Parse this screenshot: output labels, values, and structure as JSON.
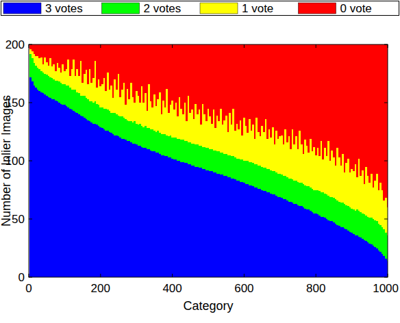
{
  "chart_data": {
    "type": "bar",
    "stacked": true,
    "legend": "top",
    "xlabel": "Category",
    "ylabel": "Number of Inlier Images",
    "xlim": [
      0,
      1000
    ],
    "ylim": [
      0,
      200
    ],
    "xticks": [
      0,
      200,
      400,
      600,
      800,
      1000
    ],
    "yticks": [
      0,
      50,
      100,
      150,
      200
    ],
    "x": [
      5,
      10,
      15,
      20,
      25,
      30,
      35,
      40,
      45,
      50,
      55,
      60,
      65,
      70,
      75,
      80,
      85,
      90,
      95,
      100,
      105,
      110,
      115,
      120,
      125,
      130,
      135,
      140,
      145,
      150,
      155,
      160,
      165,
      170,
      175,
      180,
      185,
      190,
      195,
      200,
      205,
      210,
      215,
      220,
      225,
      230,
      235,
      240,
      245,
      250,
      255,
      260,
      265,
      270,
      275,
      280,
      285,
      290,
      295,
      300,
      305,
      310,
      315,
      320,
      325,
      330,
      335,
      340,
      345,
      350,
      355,
      360,
      365,
      370,
      375,
      380,
      385,
      390,
      395,
      400,
      405,
      410,
      415,
      420,
      425,
      430,
      435,
      440,
      445,
      450,
      455,
      460,
      465,
      470,
      475,
      480,
      485,
      490,
      495,
      500,
      505,
      510,
      515,
      520,
      525,
      530,
      535,
      540,
      545,
      550,
      555,
      560,
      565,
      570,
      575,
      580,
      585,
      590,
      595,
      600,
      605,
      610,
      615,
      620,
      625,
      630,
      635,
      640,
      645,
      650,
      655,
      660,
      665,
      670,
      675,
      680,
      685,
      690,
      695,
      700,
      705,
      710,
      715,
      720,
      725,
      730,
      735,
      740,
      745,
      750,
      755,
      760,
      765,
      770,
      775,
      780,
      785,
      790,
      795,
      800,
      805,
      810,
      815,
      820,
      825,
      830,
      835,
      840,
      845,
      850,
      855,
      860,
      865,
      870,
      875,
      880,
      885,
      890,
      895,
      900,
      905,
      910,
      915,
      920,
      925,
      930,
      935,
      940,
      945,
      950,
      955,
      960,
      965,
      970,
      975,
      980,
      985,
      990,
      995,
      1000
    ],
    "series": [
      {
        "name": "3 votes",
        "color": "#0000ff",
        "values": [
          172,
          168,
          165,
          163,
          161,
          160,
          159,
          158,
          157,
          156,
          155,
          154,
          153,
          153,
          152,
          151,
          150,
          149,
          148,
          148,
          147,
          146,
          145,
          144,
          143,
          142,
          141,
          140,
          139,
          138,
          137,
          136,
          135,
          134,
          133,
          132,
          132,
          131,
          130,
          129,
          128,
          127,
          126,
          126,
          125,
          124,
          123,
          122,
          122,
          121,
          120,
          119,
          119,
          118,
          117,
          117,
          116,
          115,
          115,
          114,
          113,
          113,
          112,
          111,
          111,
          110,
          110,
          109,
          108,
          108,
          107,
          107,
          106,
          105,
          105,
          104,
          104,
          103,
          103,
          102,
          101,
          101,
          100,
          100,
          99,
          99,
          98,
          98,
          97,
          97,
          96,
          96,
          95,
          95,
          94,
          94,
          93,
          93,
          92,
          92,
          91,
          91,
          90,
          90,
          89,
          89,
          88,
          88,
          87,
          87,
          86,
          86,
          85,
          85,
          84,
          83,
          83,
          82,
          82,
          81,
          80,
          80,
          79,
          79,
          78,
          77,
          77,
          76,
          76,
          75,
          74,
          74,
          73,
          73,
          72,
          71,
          71,
          70,
          69,
          69,
          68,
          67,
          67,
          66,
          65,
          65,
          64,
          63,
          63,
          62,
          61,
          61,
          60,
          59,
          58,
          58,
          57,
          56,
          55,
          55,
          54,
          53,
          52,
          52,
          51,
          50,
          49,
          48,
          48,
          47,
          46,
          45,
          44,
          43,
          43,
          42,
          41,
          40,
          39,
          38,
          37,
          36,
          36,
          35,
          34,
          33,
          32,
          31,
          30,
          29,
          28,
          27,
          26,
          25,
          23,
          22,
          20,
          18,
          16,
          14
        ]
      },
      {
        "name": "2 votes",
        "color": "#00ff00",
        "values": [
          20,
          20,
          19,
          19,
          19,
          19,
          18,
          18,
          18,
          18,
          18,
          18,
          18,
          17,
          17,
          18,
          18,
          18,
          18,
          18,
          18,
          19,
          18,
          17,
          18,
          19,
          18,
          18,
          17,
          18,
          19,
          18,
          18,
          17,
          18,
          18,
          19,
          18,
          18,
          17,
          18,
          18,
          19,
          18,
          18,
          17,
          18,
          19,
          18,
          18,
          18,
          19,
          18,
          18,
          18,
          17,
          18,
          18,
          19,
          18,
          18,
          19,
          18,
          18,
          19,
          18,
          18,
          18,
          19,
          18,
          18,
          19,
          18,
          18,
          18,
          19,
          18,
          18,
          19,
          18,
          19,
          19,
          19,
          19,
          19,
          19,
          19,
          19,
          19,
          19,
          19,
          19,
          19,
          19,
          19,
          19,
          19,
          19,
          19,
          19,
          19,
          19,
          19,
          19,
          19,
          19,
          19,
          19,
          19,
          19,
          19,
          19,
          19,
          19,
          19,
          19,
          19,
          19,
          19,
          19,
          20,
          20,
          20,
          20,
          20,
          20,
          20,
          20,
          20,
          20,
          20,
          20,
          20,
          20,
          20,
          20,
          20,
          20,
          20,
          20,
          20,
          20,
          20,
          20,
          20,
          20,
          20,
          20,
          20,
          20,
          20,
          20,
          20,
          20,
          20,
          20,
          20,
          20,
          20,
          20,
          21,
          21,
          21,
          21,
          21,
          21,
          21,
          21,
          21,
          21,
          21,
          21,
          21,
          21,
          21,
          21,
          21,
          21,
          21,
          21,
          21,
          21,
          22,
          22,
          22,
          22,
          22,
          22,
          22,
          22,
          23,
          23,
          23,
          23,
          23,
          23,
          23,
          23,
          22,
          22
        ]
      },
      {
        "name": "1 vote",
        "color": "#ffff00",
        "values": [
          4,
          6,
          8,
          8,
          10,
          9,
          12,
          7,
          14,
          11,
          9,
          16,
          10,
          13,
          8,
          15,
          12,
          9,
          17,
          11,
          14,
          22,
          10,
          18,
          26,
          12,
          20,
          15,
          30,
          11,
          19,
          24,
          13,
          28,
          16,
          21,
          35,
          14,
          22,
          18,
          20,
          26,
          15,
          32,
          18,
          24,
          13,
          29,
          21,
          36,
          17,
          23,
          30,
          12,
          27,
          19,
          33,
          22,
          16,
          28,
          25,
          18,
          34,
          21,
          28,
          15,
          38,
          24,
          19,
          31,
          22,
          27,
          35,
          17,
          29,
          23,
          40,
          20,
          26,
          32,
          24,
          30,
          19,
          36,
          27,
          22,
          33,
          17,
          40,
          25,
          29,
          21,
          35,
          26,
          31,
          18,
          37,
          28,
          23,
          34,
          28,
          22,
          35,
          19,
          31,
          26,
          38,
          24,
          29,
          33,
          20,
          36,
          27,
          41,
          23,
          30,
          25,
          34,
          21,
          37,
          30,
          24,
          37,
          27,
          33,
          22,
          40,
          29,
          25,
          35,
          31,
          42,
          26,
          34,
          28,
          38,
          23,
          36,
          30,
          32,
          34,
          27,
          40,
          30,
          36,
          25,
          43,
          31,
          38,
          28,
          45,
          33,
          26,
          39,
          35,
          29,
          42,
          32,
          37,
          30,
          36,
          30,
          44,
          28,
          39,
          33,
          47,
          31,
          40,
          35,
          29,
          45,
          38,
          32,
          42,
          27,
          36,
          41,
          30,
          34,
          33,
          40,
          28,
          45,
          31,
          37,
          26,
          42,
          35,
          30,
          38,
          27,
          34,
          41,
          29,
          36,
          32,
          25,
          30,
          24
        ]
      },
      {
        "name": "0 vote",
        "color": "#ff0000",
        "values": [
          4,
          6,
          8,
          10,
          10,
          12,
          11,
          17,
          11,
          15,
          18,
          12,
          19,
          17,
          23,
          16,
          20,
          24,
          17,
          23,
          21,
          13,
          27,
          21,
          13,
          27,
          21,
          27,
          14,
          33,
          25,
          22,
          34,
          21,
          33,
          29,
          14,
          37,
          30,
          36,
          34,
          29,
          40,
          24,
          39,
          35,
          46,
          30,
          39,
          25,
          45,
          39,
          33,
          52,
          38,
          47,
          33,
          45,
          50,
          40,
          44,
          50,
          36,
          50,
          42,
          57,
          34,
          49,
          54,
          43,
          53,
          47,
          41,
          60,
          48,
          54,
          38,
          59,
          52,
          48,
          56,
          50,
          62,
          45,
          55,
          60,
          50,
          66,
          44,
          59,
          56,
          64,
          51,
          60,
          56,
          69,
          51,
          60,
          66,
          55,
          62,
          68,
          56,
          72,
          61,
          66,
          55,
          69,
          65,
          61,
          75,
          59,
          69,
          55,
          74,
          68,
          73,
          65,
          78,
          63,
          70,
          76,
          64,
          74,
          69,
          81,
          63,
          75,
          79,
          70,
          75,
          64,
          81,
          73,
          80,
          71,
          86,
          74,
          81,
          79,
          78,
          86,
          73,
          84,
          79,
          90,
          73,
          86,
          79,
          90,
          74,
          86,
          94,
          82,
          87,
          93,
          81,
          92,
          88,
          95,
          89,
          96,
          83,
          99,
          89,
          96,
          83,
          100,
          91,
          97,
          104,
          89,
          97,
          104,
          94,
          110,
          102,
          98,
          110,
          107,
          109,
          103,
          114,
          98,
          113,
          108,
          120,
          105,
          113,
          119,
          111,
          123,
          117,
          111,
          125,
          119,
          125,
          134,
          132,
          140
        ]
      }
    ]
  }
}
